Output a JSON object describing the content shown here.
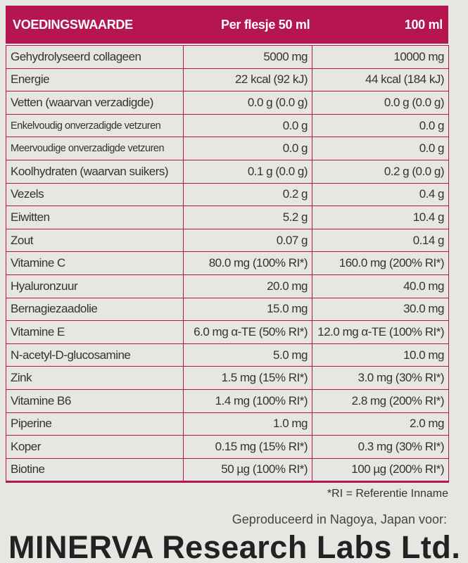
{
  "header": {
    "title": "VOEDINGSWAARDE",
    "col_per_bottle": "Per flesje 50 ml",
    "col_per_100": "100 ml"
  },
  "table": {
    "rows": [
      [
        "Gehydrolyseerd collageen",
        "5000 mg",
        "10000 mg"
      ],
      [
        "Energie",
        "22 kcal (92 kJ)",
        "44 kcal (184 kJ)"
      ],
      [
        "Vetten (waarvan verzadigde)",
        "0.0 g (0.0 g)",
        "0.0 g (0.0 g)"
      ],
      [
        "Enkelvoudig onverzadigde vetzuren",
        "0.0 g",
        "0.0 g"
      ],
      [
        "Meervoudige onverzadigde vetzuren",
        "0.0 g",
        "0.0 g"
      ],
      [
        "Koolhydraten (waarvan suikers)",
        "0.1 g (0.0 g)",
        "0.2 g (0.0 g)"
      ],
      [
        "Vezels",
        "0.2 g",
        "0.4 g"
      ],
      [
        "Eiwitten",
        "5.2 g",
        "10.4 g"
      ],
      [
        "Zout",
        "0.07 g",
        "0.14 g"
      ],
      [
        "Vitamine C",
        "80.0 mg (100% RI*)",
        "160.0 mg (200% RI*)"
      ],
      [
        "Hyaluronzuur",
        "20.0 mg",
        "40.0 mg"
      ],
      [
        "Bernagiezaadolie",
        "15.0 mg",
        "30.0 mg"
      ],
      [
        "Vitamine E",
        "6.0 mg α-TE (50% RI*)",
        "12.0 mg α-TE (100% RI*)"
      ],
      [
        "N-acetyl-D-glucosamine",
        "5.0 mg",
        "10.0 mg"
      ],
      [
        "Zink",
        "1.5 mg (15% RI*)",
        "3.0 mg (30% RI*)"
      ],
      [
        "Vitamine B6",
        "1.4 mg (100% RI*)",
        "2.8 mg (200% RI*)"
      ],
      [
        "Piperine",
        "1.0 mg",
        "2.0 mg"
      ],
      [
        "Koper",
        "0.15 mg (15% RI*)",
        "0.3 mg (30% RI*)"
      ],
      [
        "Biotine",
        "50 µg (100% RI*)",
        "100 µg (200% RI*)"
      ]
    ]
  },
  "footnote": "*RI = Referentie Inname",
  "producer": "Geproduceerd in Nagoya, Japan voor:",
  "company": "MINERVA Research Labs Ltd."
}
